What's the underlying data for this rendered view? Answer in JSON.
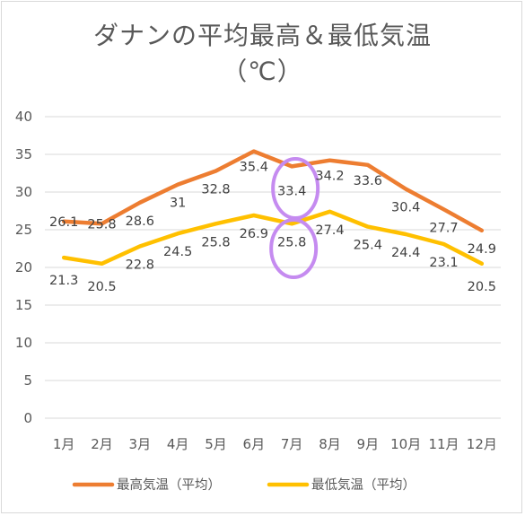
{
  "chart_data": {
    "type": "line",
    "title_line1": "ダナンの平均最高＆最低気温",
    "title_line2": "（℃）",
    "categories": [
      "1月",
      "2月",
      "3月",
      "4月",
      "5月",
      "6月",
      "7月",
      "8月",
      "9月",
      "10月",
      "11月",
      "12月"
    ],
    "series": [
      {
        "name": "最高気温（平均）",
        "color": "#ED7D31",
        "values": [
          26.1,
          25.8,
          28.6,
          31,
          32.8,
          35.4,
          33.4,
          34.2,
          33.6,
          30.4,
          27.7,
          24.9
        ],
        "labels": [
          "26.1",
          "25.8",
          "28.6",
          "31",
          "32.8",
          "35.4",
          "33.4",
          "34.2",
          "33.6",
          "30.4",
          "27.7",
          "24.9"
        ]
      },
      {
        "name": "最低気温（平均）",
        "color": "#FFC000",
        "values": [
          21.3,
          20.5,
          22.8,
          24.5,
          25.8,
          26.9,
          25.8,
          27.4,
          25.4,
          24.4,
          23.1,
          20.5
        ],
        "labels": [
          "21.3",
          "20.5",
          "22.8",
          "24.5",
          "25.8",
          "26.9",
          "25.8",
          "27.4",
          "25.4",
          "24.4",
          "23.1",
          "20.5"
        ]
      }
    ],
    "yticks": [
      "0",
      "5",
      "10",
      "15",
      "20",
      "25",
      "30",
      "35",
      "40"
    ],
    "ylim": [
      0,
      40
    ],
    "grid": true,
    "legend_position": "bottom",
    "annotations": [
      {
        "type": "circle",
        "color": "#C58BF0",
        "target": "7月 最高気温 33.4"
      },
      {
        "type": "circle",
        "color": "#C58BF0",
        "target": "7月 最低気温 25.8"
      }
    ]
  }
}
